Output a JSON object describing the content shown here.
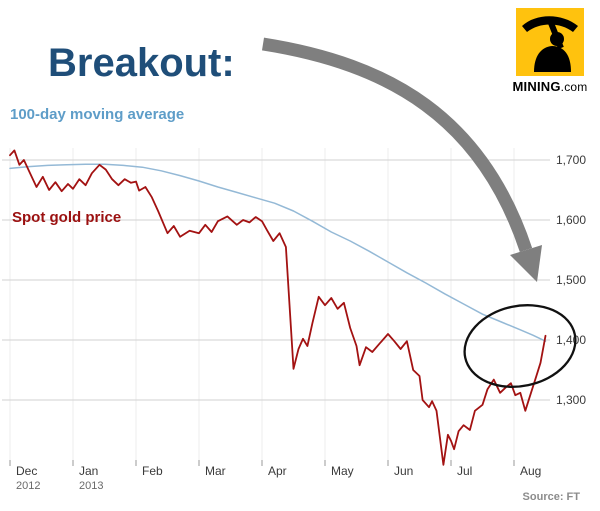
{
  "header": {
    "title": "Breakout:"
  },
  "logo": {
    "text_main": "MINING",
    "text_suffix": ".com"
  },
  "series_labels": {
    "ma": "100-day moving average",
    "spot": "Spot gold price"
  },
  "source": "Source: FT",
  "colors": {
    "title": "#1F4E79",
    "ma_label": "#5E9DC8",
    "spot_label": "#9B1010",
    "arrow": "#7F7F7F",
    "ellipse": "#111111",
    "grid": "#D2D2D2",
    "logo_bg": "#FFC20E"
  },
  "chart_data": {
    "type": "line",
    "title": "Breakout:",
    "subtitle": "Spot gold price vs 100-day moving average, Dec 2012 - Aug 2013",
    "legend_position": "labels-on-chart",
    "x_axis": {
      "unit": "month",
      "ticks": [
        {
          "label": "Dec",
          "year": "2012"
        },
        {
          "label": "Jan",
          "year": "2013"
        },
        {
          "label": "Feb",
          "year": ""
        },
        {
          "label": "Mar",
          "year": ""
        },
        {
          "label": "Apr",
          "year": ""
        },
        {
          "label": "May",
          "year": ""
        },
        {
          "label": "Jun",
          "year": ""
        },
        {
          "label": "Jul",
          "year": ""
        },
        {
          "label": "Aug",
          "year": ""
        }
      ]
    },
    "y_axis": {
      "side": "right",
      "grid": true,
      "range": [
        1160,
        1730
      ],
      "ticks": [
        {
          "value": 1700,
          "label": "1,700"
        },
        {
          "value": 1600,
          "label": "1,600"
        },
        {
          "value": 1500,
          "label": "1,500"
        },
        {
          "value": 1400,
          "label": "1,400"
        },
        {
          "value": 1300,
          "label": "1,300"
        }
      ]
    },
    "series": [
      {
        "name": "100-day moving average",
        "color": "#94B9D6",
        "line_width": 1.5,
        "x": [
          0,
          0.3,
          0.6,
          0.9,
          1.2,
          1.5,
          1.8,
          2.1,
          2.4,
          2.7,
          3.0,
          3.3,
          3.6,
          3.9,
          4.2,
          4.5,
          4.8,
          5.1,
          5.4,
          5.7,
          6.0,
          6.3,
          6.6,
          6.9,
          7.2,
          7.5,
          7.8,
          8.1,
          8.3,
          8.5
        ],
        "values": [
          1686,
          1689,
          1691,
          1692,
          1693,
          1693,
          1691,
          1688,
          1682,
          1674,
          1665,
          1655,
          1646,
          1637,
          1628,
          1615,
          1598,
          1580,
          1565,
          1548,
          1530,
          1512,
          1495,
          1477,
          1460,
          1443,
          1430,
          1417,
          1408,
          1398
        ]
      },
      {
        "name": "Spot gold price",
        "color": "#A31212",
        "line_width": 1.8,
        "x": [
          0,
          0.07,
          0.15,
          0.22,
          0.3,
          0.42,
          0.52,
          0.62,
          0.72,
          0.82,
          0.92,
          1.0,
          1.1,
          1.2,
          1.3,
          1.42,
          1.52,
          1.62,
          1.72,
          1.82,
          1.92,
          2.0,
          2.05,
          2.15,
          2.25,
          2.35,
          2.5,
          2.6,
          2.7,
          2.85,
          3.0,
          3.1,
          3.2,
          3.3,
          3.45,
          3.6,
          3.7,
          3.8,
          3.9,
          4.0,
          4.08,
          4.18,
          4.28,
          4.38,
          4.5,
          4.58,
          4.65,
          4.72,
          4.8,
          4.9,
          5.0,
          5.1,
          5.2,
          5.3,
          5.4,
          5.5,
          5.55,
          5.65,
          5.75,
          5.85,
          6.0,
          6.1,
          6.2,
          6.3,
          6.4,
          6.5,
          6.55,
          6.65,
          6.7,
          6.77,
          6.88,
          6.95,
          7.0,
          7.05,
          7.12,
          7.2,
          7.3,
          7.38,
          7.5,
          7.58,
          7.68,
          7.78,
          7.88,
          7.95,
          8.02,
          8.1,
          8.18,
          8.27,
          8.35,
          8.42,
          8.5
        ],
        "values": [
          1708,
          1716,
          1692,
          1700,
          1682,
          1655,
          1672,
          1650,
          1663,
          1648,
          1660,
          1652,
          1668,
          1658,
          1678,
          1692,
          1684,
          1668,
          1658,
          1668,
          1662,
          1664,
          1649,
          1655,
          1638,
          1615,
          1578,
          1590,
          1572,
          1582,
          1578,
          1592,
          1580,
          1598,
          1606,
          1592,
          1600,
          1596,
          1605,
          1598,
          1583,
          1565,
          1578,
          1555,
          1352,
          1385,
          1402,
          1390,
          1428,
          1472,
          1458,
          1470,
          1452,
          1462,
          1420,
          1390,
          1358,
          1388,
          1380,
          1392,
          1410,
          1398,
          1385,
          1398,
          1350,
          1340,
          1300,
          1288,
          1298,
          1282,
          1192,
          1242,
          1232,
          1218,
          1248,
          1258,
          1250,
          1282,
          1292,
          1318,
          1334,
          1312,
          1322,
          1328,
          1308,
          1312,
          1282,
          1312,
          1338,
          1362,
          1407
        ]
      }
    ],
    "annotations": [
      {
        "type": "arrow",
        "description": "Thick gray curved arrow from the title pointing down-right to the crossover point"
      },
      {
        "type": "ellipse",
        "description": "Black ellipse circling where the spot price crosses above the 100-day moving average near 1,400 in Aug 2013"
      }
    ]
  }
}
